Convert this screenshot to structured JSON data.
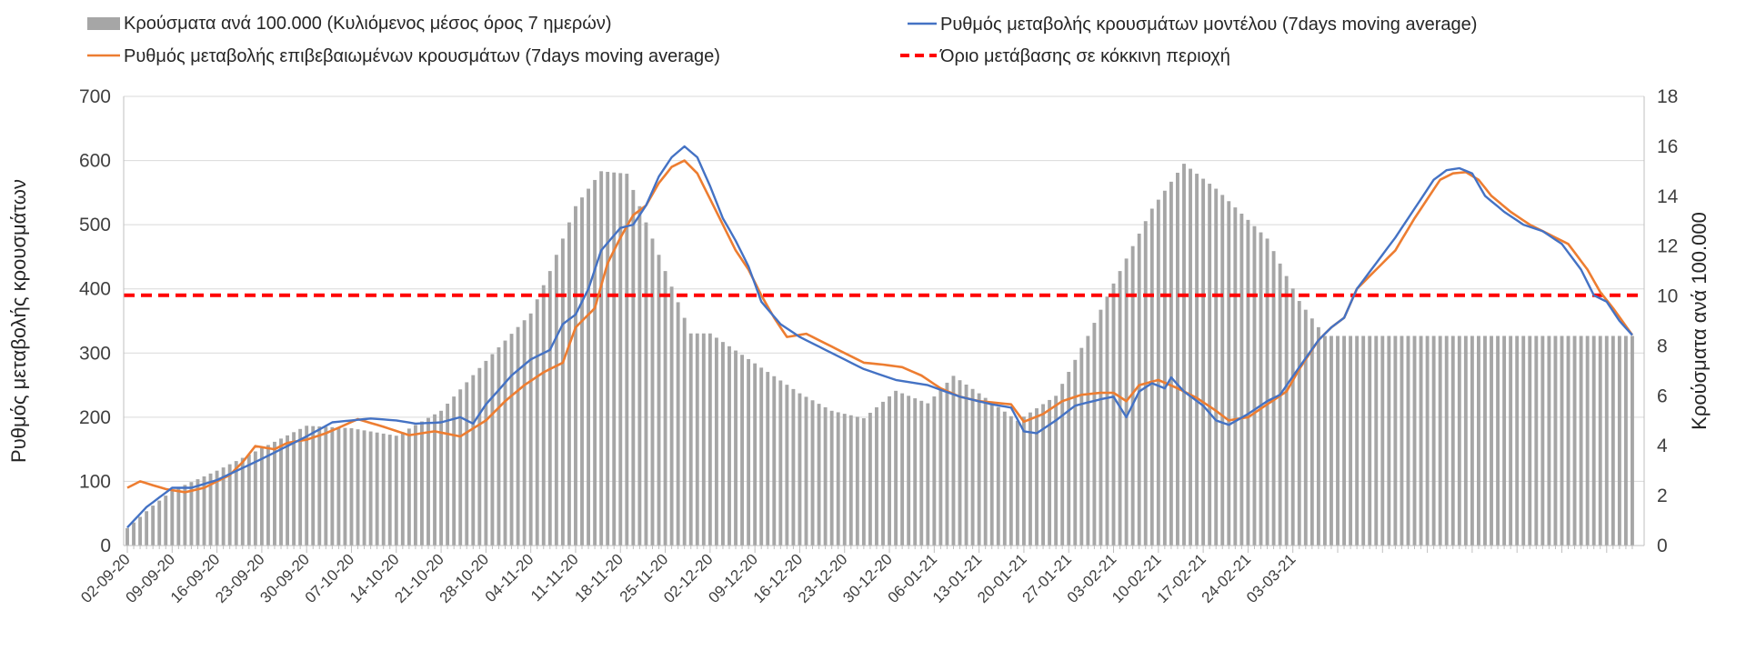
{
  "legend": {
    "bars": "Κρούσματα ανά 100.000 (Κυλιόμενος μέσος όρος 7 ημερών)",
    "model": "Ρυθμός μεταβολής κρουσμάτων μοντέλου (7days moving average)",
    "confirmed": "Ρυθμός μεταβολής επιβεβαιωμένων κρουσμάτων (7days moving average)",
    "threshold": "Όριο μετάβασης σε κόκκινη περιοχή"
  },
  "colors": {
    "bars": "#a6a6a6",
    "model": "#4472c4",
    "confirmed": "#ed7d31",
    "threshold": "#ff0000",
    "grid": "#d9d9d9",
    "axis_text": "#404040"
  },
  "chart_data": {
    "type": "bar+line",
    "y1label": "Ρυθμός μεταβολής κρουσμάτων",
    "y2label": "Κρούσματα ανά 100.000",
    "y1lim": [
      0,
      700
    ],
    "y1ticks": [
      "0",
      "100",
      "200",
      "300",
      "400",
      "500",
      "600",
      "700"
    ],
    "y2lim": [
      0,
      18
    ],
    "y2ticks": [
      "0",
      "2",
      "4",
      "6",
      "8",
      "10",
      "12",
      "14",
      "16",
      "18"
    ],
    "x_tick_labels": [
      "02-09-20",
      "09-09-20",
      "16-09-20",
      "23-09-20",
      "30-09-20",
      "07-10-20",
      "14-10-20",
      "21-10-20",
      "28-10-20",
      "04-11-20",
      "11-11-20",
      "18-11-20",
      "25-11-20",
      "02-12-20",
      "09-12-20",
      "16-12-20",
      "23-12-20",
      "30-12-20",
      "06-01-21",
      "13-01-21",
      "20-01-21",
      "27-01-21",
      "03-02-21",
      "10-02-21",
      "17-02-21",
      "24-02-21",
      "03-03-21"
    ],
    "n_days": 188,
    "threshold_value": 390,
    "grid": "horizontal",
    "bars_anchor_values": [
      [
        0,
        0.7
      ],
      [
        4,
        1.6
      ],
      [
        7,
        2.2
      ],
      [
        14,
        3.0
      ],
      [
        21,
        3.9
      ],
      [
        28,
        4.8
      ],
      [
        35,
        4.7
      ],
      [
        42,
        4.4
      ],
      [
        49,
        5.4
      ],
      [
        56,
        7.4
      ],
      [
        63,
        9.3
      ],
      [
        66,
        11.0
      ],
      [
        70,
        13.6
      ],
      [
        74,
        15.0
      ],
      [
        78,
        14.9
      ],
      [
        84,
        11.0
      ],
      [
        88,
        8.5
      ],
      [
        91,
        8.5
      ],
      [
        98,
        7.3
      ],
      [
        105,
        6.1
      ],
      [
        110,
        5.4
      ],
      [
        115,
        5.1
      ],
      [
        120,
        6.2
      ],
      [
        125,
        5.7
      ],
      [
        129,
        6.8
      ],
      [
        133,
        6.1
      ],
      [
        139,
        5.0
      ],
      [
        145,
        6.0
      ],
      [
        150,
        8.4
      ],
      [
        154,
        10.5
      ],
      [
        160,
        13.5
      ],
      [
        165,
        15.3
      ],
      [
        170,
        14.3
      ],
      [
        174,
        13.3
      ],
      [
        178,
        12.3
      ],
      [
        183,
        9.8
      ],
      [
        187,
        8.4
      ]
    ],
    "model_anchor_values": [
      [
        0,
        28
      ],
      [
        3,
        60
      ],
      [
        7,
        90
      ],
      [
        10,
        90
      ],
      [
        14,
        102
      ],
      [
        21,
        135
      ],
      [
        28,
        170
      ],
      [
        32,
        192
      ],
      [
        35,
        195
      ],
      [
        38,
        198
      ],
      [
        42,
        195
      ],
      [
        45,
        190
      ],
      [
        49,
        192
      ],
      [
        52,
        200
      ],
      [
        54,
        190
      ],
      [
        56,
        220
      ],
      [
        60,
        265
      ],
      [
        63,
        290
      ],
      [
        66,
        305
      ],
      [
        68,
        345
      ],
      [
        70,
        360
      ],
      [
        72,
        400
      ],
      [
        74,
        460
      ],
      [
        77,
        495
      ],
      [
        79,
        500
      ],
      [
        81,
        530
      ],
      [
        83,
        575
      ],
      [
        85,
        605
      ],
      [
        87,
        622
      ],
      [
        89,
        605
      ],
      [
        91,
        560
      ],
      [
        93,
        510
      ],
      [
        95,
        475
      ],
      [
        97,
        435
      ],
      [
        99,
        380
      ],
      [
        102,
        345
      ],
      [
        105,
        325
      ],
      [
        110,
        300
      ],
      [
        115,
        275
      ],
      [
        120,
        258
      ],
      [
        125,
        250
      ],
      [
        130,
        232
      ],
      [
        135,
        220
      ],
      [
        138,
        215
      ],
      [
        140,
        178
      ],
      [
        142,
        175
      ],
      [
        145,
        195
      ],
      [
        148,
        218
      ],
      [
        152,
        228
      ],
      [
        154,
        232
      ],
      [
        156,
        200
      ],
      [
        158,
        240
      ],
      [
        160,
        253
      ],
      [
        162,
        245
      ],
      [
        163,
        262
      ],
      [
        165,
        240
      ],
      [
        168,
        218
      ],
      [
        170,
        195
      ],
      [
        172,
        188
      ],
      [
        175,
        205
      ],
      [
        178,
        225
      ],
      [
        180,
        235
      ],
      [
        183,
        278
      ],
      [
        186,
        320
      ],
      [
        188,
        340
      ],
      [
        190,
        355
      ],
      [
        192,
        400
      ],
      [
        195,
        440
      ],
      [
        198,
        480
      ],
      [
        201,
        525
      ],
      [
        204,
        570
      ],
      [
        206,
        585
      ],
      [
        208,
        588
      ],
      [
        210,
        580
      ],
      [
        212,
        545
      ],
      [
        215,
        520
      ],
      [
        218,
        500
      ],
      [
        221,
        490
      ],
      [
        224,
        470
      ],
      [
        227,
        430
      ],
      [
        229,
        390
      ],
      [
        231,
        380
      ],
      [
        233,
        350
      ],
      [
        235,
        328
      ]
    ],
    "confirmed_anchor_values": [
      [
        0,
        90
      ],
      [
        2,
        100
      ],
      [
        6,
        88
      ],
      [
        9,
        83
      ],
      [
        12,
        90
      ],
      [
        16,
        110
      ],
      [
        18,
        130
      ],
      [
        20,
        155
      ],
      [
        23,
        150
      ],
      [
        25,
        160
      ],
      [
        28,
        165
      ],
      [
        31,
        175
      ],
      [
        34,
        188
      ],
      [
        36,
        197
      ],
      [
        40,
        185
      ],
      [
        44,
        172
      ],
      [
        48,
        178
      ],
      [
        52,
        170
      ],
      [
        56,
        195
      ],
      [
        59,
        225
      ],
      [
        62,
        250
      ],
      [
        65,
        270
      ],
      [
        68,
        285
      ],
      [
        70,
        340
      ],
      [
        73,
        370
      ],
      [
        75,
        440
      ],
      [
        77,
        480
      ],
      [
        79,
        515
      ],
      [
        81,
        530
      ],
      [
        83,
        565
      ],
      [
        85,
        590
      ],
      [
        87,
        600
      ],
      [
        89,
        580
      ],
      [
        91,
        540
      ],
      [
        93,
        500
      ],
      [
        95,
        460
      ],
      [
        97,
        430
      ],
      [
        99,
        390
      ],
      [
        101,
        355
      ],
      [
        103,
        325
      ],
      [
        106,
        330
      ],
      [
        109,
        315
      ],
      [
        112,
        300
      ],
      [
        115,
        285
      ],
      [
        118,
        282
      ],
      [
        121,
        278
      ],
      [
        124,
        265
      ],
      [
        127,
        245
      ],
      [
        130,
        232
      ],
      [
        133,
        225
      ],
      [
        136,
        222
      ],
      [
        138,
        220
      ],
      [
        140,
        193
      ],
      [
        143,
        205
      ],
      [
        146,
        225
      ],
      [
        149,
        235
      ],
      [
        152,
        238
      ],
      [
        154,
        238
      ],
      [
        156,
        225
      ],
      [
        158,
        250
      ],
      [
        161,
        258
      ],
      [
        164,
        245
      ],
      [
        167,
        230
      ],
      [
        170,
        210
      ],
      [
        172,
        195
      ],
      [
        175,
        200
      ],
      [
        178,
        220
      ],
      [
        181,
        240
      ],
      [
        183,
        275
      ],
      [
        186,
        320
      ],
      [
        188,
        340
      ],
      [
        190,
        355
      ],
      [
        192,
        400
      ],
      [
        195,
        430
      ],
      [
        198,
        460
      ],
      [
        201,
        510
      ],
      [
        203,
        540
      ],
      [
        205,
        570
      ],
      [
        207,
        580
      ],
      [
        209,
        582
      ],
      [
        211,
        570
      ],
      [
        213,
        545
      ],
      [
        216,
        520
      ],
      [
        219,
        500
      ],
      [
        222,
        485
      ],
      [
        225,
        470
      ],
      [
        228,
        430
      ],
      [
        230,
        395
      ],
      [
        232,
        370
      ],
      [
        235,
        328
      ]
    ]
  }
}
